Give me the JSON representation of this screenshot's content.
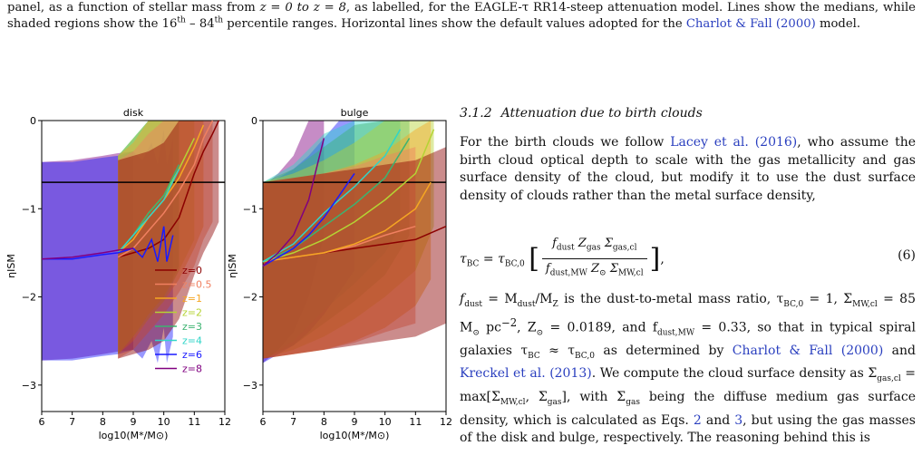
{
  "caption": {
    "part1": "panel, as a function of stellar mass from ",
    "z_range": "z = 0 to z = 8",
    "part2": ", as labelled, for the EAGLE-τ RR14-steep attenuation model. Lines show the medians, while shaded regions show the 16",
    "sup1": "th",
    "part3": " – 84",
    "sup2": "th",
    "part4": " percentile ranges. Horizontal lines show the default values adopted for the ",
    "link": "Charlot & Fall (2000)",
    "part5": " model."
  },
  "section": {
    "number": "3.1.2",
    "title": "Attenuation due to birth clouds"
  },
  "paragraph1": {
    "t1": "For the birth clouds we follow ",
    "cite1": "Lacey et al. (2016)",
    "t2": ", who assume the birth cloud optical depth to scale with the gas metallicity and gas surface density of the cloud, but modify it to use the dust surface density of clouds rather than the metal surface density,"
  },
  "equation": {
    "lhs": "τ",
    "lhs_sub": "BC",
    "eq": " = τ",
    "eq_sub": "BC,0",
    "num": "f",
    "num_sub": "dust",
    "num2": " Z",
    "num2_sub": "gas",
    "num3": " Σ",
    "num3_sub": "gas,cl",
    "den": "f",
    "den_sub": "dust,MW",
    "den2": " Z",
    "den2_sub": "⊙",
    "den3": " Σ",
    "den3_sub": "MW,cl",
    "number": "(6)"
  },
  "paragraph2": {
    "t1": "f",
    "t1s": "dust",
    "t2": " = M",
    "t2s": "dust",
    "t3": "/M",
    "t3s": "Z",
    "t4": " is the dust-to-metal mass ratio, τ",
    "t4s": "BC,0",
    "t5": " = 1, Σ",
    "t5s": "MW,cl",
    "t6": " = 85 M",
    "t6s": "⊙",
    "t7": " pc",
    "t7sup": "−2",
    "t8": ", Z",
    "t8s": "⊙",
    "t9": " = 0.0189, and f",
    "t9s": "dust,MW",
    "t10": " = 0.33, so that in typical spiral galaxies τ",
    "t10s": "BC",
    "t11": " ≈ τ",
    "t11s": "BC,0",
    "t12": " as determined by ",
    "cite1": "Charlot & Fall (2000)",
    "t13": " and ",
    "cite2": "Kreckel et al. (2013)",
    "t14": ". We compute the cloud surface density as Σ",
    "t14s": "gas,cl",
    "t15": " = max[Σ",
    "t15s": "MW,cl",
    "t16": ", Σ",
    "t16s": "gas",
    "t17": "], with Σ",
    "t17s": "gas",
    "t18": " being the diffuse medium gas surface density, which is calculated as Eqs. ",
    "ref1": "2",
    "t19": " and ",
    "ref2": "3",
    "t20": ", but using the gas masses of the disk and bulge, respectively. The reasoning behind this is"
  },
  "chart_data": [
    {
      "type": "line",
      "title": "disk",
      "xlabel": "log10(M*/M⊙)",
      "ylabel": "ηISM",
      "xlim": [
        6,
        12
      ],
      "ylim": [
        -3.3,
        0
      ],
      "xticks": [
        6,
        7,
        8,
        9,
        10,
        11,
        12
      ],
      "yticks": [
        0,
        -1,
        -2,
        -3
      ],
      "hline": -0.7,
      "legend_placement": "lower-right",
      "series": [
        {
          "name": "z=0",
          "color": "#8b0000",
          "x": [
            8.5,
            9,
            9.5,
            10,
            10.5,
            11,
            11.3,
            11.6,
            11.8
          ],
          "y": [
            -1.55,
            -1.5,
            -1.45,
            -1.35,
            -1.1,
            -0.6,
            -0.35,
            -0.15,
            0
          ]
        },
        {
          "name": "z=0.5",
          "color": "#f08060",
          "x": [
            8.5,
            9,
            9.5,
            10,
            10.5,
            11,
            11.3,
            11.6
          ],
          "y": [
            -1.55,
            -1.45,
            -1.25,
            -1.05,
            -0.8,
            -0.5,
            -0.2,
            0
          ]
        },
        {
          "name": "z=1",
          "color": "#f5a623",
          "x": [
            8.5,
            9,
            9.5,
            10,
            10.5,
            11,
            11.3
          ],
          "y": [
            -1.5,
            -1.35,
            -1.1,
            -0.9,
            -0.65,
            -0.3,
            -0.05
          ]
        },
        {
          "name": "z=2",
          "color": "#b5d334",
          "x": [
            8.5,
            9,
            9.5,
            10,
            10.5,
            11
          ],
          "y": [
            -1.5,
            -1.3,
            -1.05,
            -0.85,
            -0.55,
            -0.2
          ]
        },
        {
          "name": "z=3",
          "color": "#3cb371",
          "x": [
            8.5,
            9,
            9.5,
            10,
            10.5
          ],
          "y": [
            -1.5,
            -1.3,
            -1.05,
            -0.85,
            -0.5
          ]
        },
        {
          "name": "z=4",
          "color": "#30d5c8",
          "x": [
            8.5,
            9,
            9.5,
            10,
            10.5
          ],
          "y": [
            -1.5,
            -1.3,
            -1.1,
            -0.9,
            -0.55
          ]
        },
        {
          "name": "z=6",
          "color": "#1a1aff",
          "x": [
            6,
            7,
            8,
            8.5,
            9,
            9.3,
            9.6,
            9.8,
            10,
            10.1,
            10.3
          ],
          "y": [
            -1.57,
            -1.57,
            -1.52,
            -1.5,
            -1.45,
            -1.55,
            -1.35,
            -1.6,
            -1.2,
            -1.6,
            -1.3
          ]
        },
        {
          "name": "z=8",
          "color": "#800080",
          "x": [
            6,
            7,
            8,
            8.5,
            9
          ],
          "y": [
            -1.57,
            -1.55,
            -1.5,
            -1.47,
            -1.45
          ]
        }
      ]
    },
    {
      "type": "line",
      "title": "bulge",
      "xlabel": "log10(M*/M⊙)",
      "ylabel": "ηISM",
      "xlim": [
        6,
        12
      ],
      "ylim": [
        -3.3,
        0
      ],
      "xticks": [
        6,
        7,
        8,
        9,
        10,
        11,
        12
      ],
      "yticks": [
        0,
        -1,
        -2,
        -3
      ],
      "hline": -0.7,
      "series": [
        {
          "name": "z=0",
          "color": "#8b0000",
          "x": [
            6,
            7,
            8,
            9,
            10,
            11,
            12
          ],
          "y": [
            -1.6,
            -1.55,
            -1.5,
            -1.45,
            -1.4,
            -1.35,
            -1.2
          ]
        },
        {
          "name": "z=0.5",
          "color": "#f08060",
          "x": [
            6,
            7,
            8,
            9,
            10,
            11
          ],
          "y": [
            -1.6,
            -1.55,
            -1.5,
            -1.42,
            -1.3,
            -1.2
          ]
        },
        {
          "name": "z=1",
          "color": "#f5a623",
          "x": [
            6,
            7,
            8,
            9,
            10,
            11,
            11.5
          ],
          "y": [
            -1.6,
            -1.55,
            -1.5,
            -1.4,
            -1.25,
            -1.0,
            -0.7
          ]
        },
        {
          "name": "z=2",
          "color": "#b5d334",
          "x": [
            6,
            7,
            8,
            9,
            10,
            11,
            11.6
          ],
          "y": [
            -1.6,
            -1.5,
            -1.35,
            -1.15,
            -0.9,
            -0.6,
            -0.1
          ]
        },
        {
          "name": "z=3",
          "color": "#3cb371",
          "x": [
            6,
            7,
            8,
            9,
            10,
            10.8
          ],
          "y": [
            -1.6,
            -1.45,
            -1.2,
            -0.95,
            -0.65,
            -0.2
          ]
        },
        {
          "name": "z=4",
          "color": "#30d5c8",
          "x": [
            6,
            7,
            8,
            9,
            10,
            10.5
          ],
          "y": [
            -1.6,
            -1.4,
            -1.05,
            -0.75,
            -0.4,
            -0.1
          ]
        },
        {
          "name": "z=6",
          "color": "#1a1aff",
          "x": [
            6,
            6.5,
            7,
            7.5,
            8,
            8.5,
            9
          ],
          "y": [
            -1.65,
            -1.55,
            -1.45,
            -1.3,
            -1.1,
            -0.85,
            -0.6
          ]
        },
        {
          "name": "z=8",
          "color": "#800080",
          "x": [
            6,
            6.5,
            7,
            7.5,
            8
          ],
          "y": [
            -1.65,
            -1.5,
            -1.3,
            -0.9,
            -0.2
          ]
        }
      ]
    }
  ]
}
